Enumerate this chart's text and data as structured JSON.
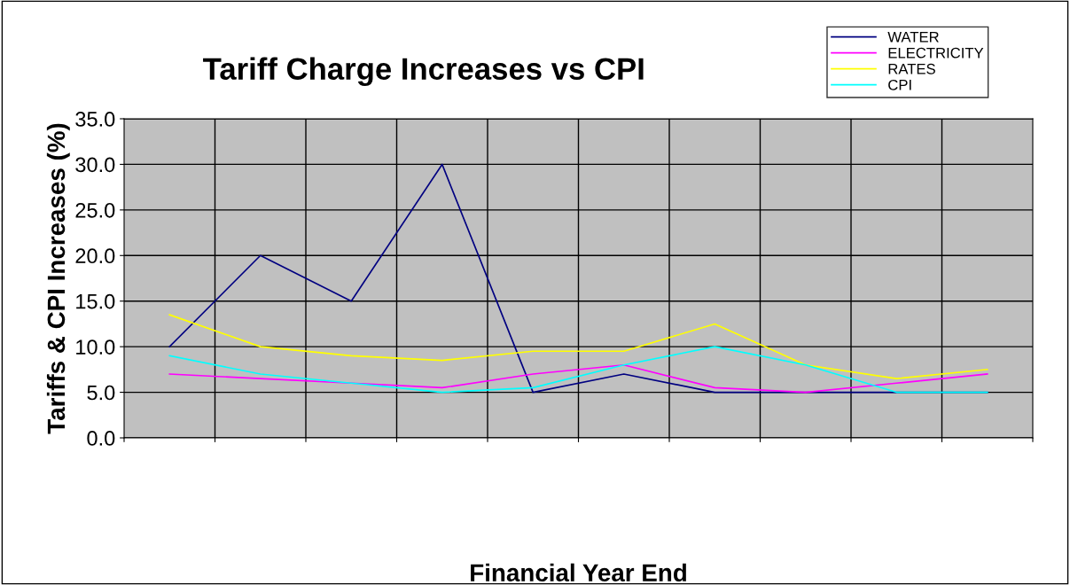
{
  "chart_data": {
    "type": "line",
    "title": "Tariff Charge Increases vs CPI",
    "xlabel": "Financial Year End",
    "ylabel": "Tariffs & CPI Increases (%)",
    "categories": [
      null,
      null,
      null,
      null,
      null,
      null,
      null,
      null,
      null,
      null
    ],
    "series": [
      {
        "name": "WATER",
        "color": "#000080",
        "values": [
          10,
          20,
          15,
          30,
          5,
          7,
          5,
          5,
          5,
          5
        ]
      },
      {
        "name": "ELECTRICITY",
        "color": "#ff00ff",
        "values": [
          7,
          6.5,
          6,
          5.5,
          7,
          8,
          5.5,
          5,
          6,
          7
        ]
      },
      {
        "name": "RATES",
        "color": "#ffff00",
        "values": [
          13.5,
          10,
          9,
          8.5,
          9.5,
          9.5,
          12.5,
          8,
          6.5,
          7.5
        ]
      },
      {
        "name": "CPI",
        "color": "#00ffff",
        "values": [
          9,
          7,
          6,
          5,
          5.5,
          8,
          10,
          8,
          5,
          5
        ]
      }
    ],
    "ylim": [
      0,
      35
    ],
    "yticks": [
      {
        "value": 0,
        "label": "0.0"
      },
      {
        "value": 5,
        "label": "5.0"
      },
      {
        "value": 10,
        "label": "10.0"
      },
      {
        "value": 15,
        "label": "15.0"
      },
      {
        "value": 20,
        "label": "20.0"
      },
      {
        "value": 25,
        "label": "25.0"
      },
      {
        "value": 30,
        "label": "30.0"
      },
      {
        "value": 35,
        "label": "35.0"
      }
    ],
    "tick_labels": "y",
    "grid": true,
    "legend": "top right",
    "marker": "none",
    "line_style": "solid"
  }
}
